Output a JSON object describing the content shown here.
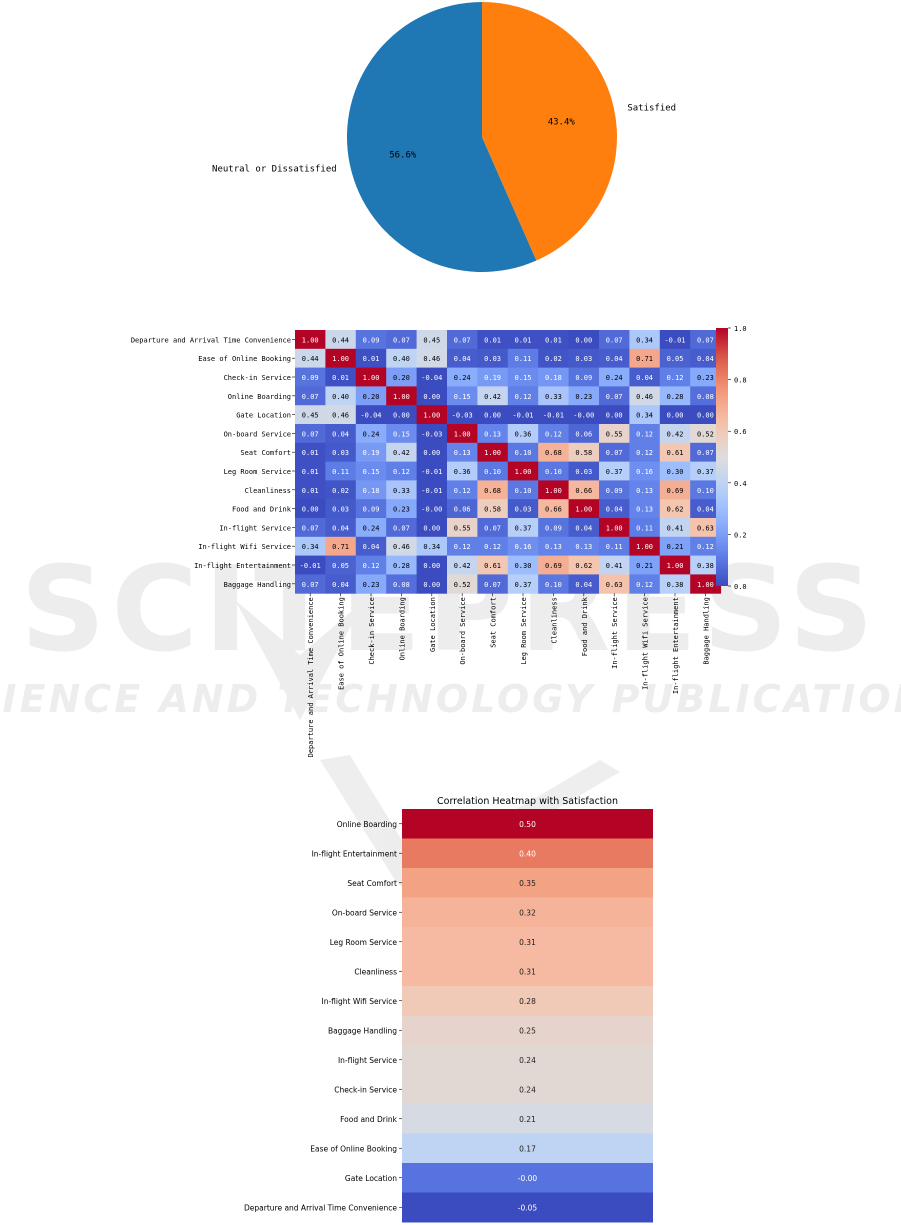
{
  "watermark": {
    "main": "SCITEPRESS",
    "sub": "SCIENCE AND TECHNOLOGY PUBLICATIONS"
  },
  "chart_data": [
    {
      "type": "pie",
      "title": "",
      "labels": [
        "Neutral or Dissatisfied",
        "Satisfied"
      ],
      "values": [
        56.6,
        43.4
      ],
      "value_labels": [
        "56.6%",
        "43.4%"
      ],
      "colors": [
        "#1f77b4",
        "#ff7f0e"
      ]
    },
    {
      "type": "heatmap",
      "title": "",
      "labels": [
        "Departure and Arrival Time Convenience",
        "Ease of Online Booking",
        "Check-in Service",
        "Online Boarding",
        "Gate Location",
        "On-board Service",
        "Seat Comfort",
        "Leg Room Service",
        "Cleanliness",
        "Food and Drink",
        "In-flight Service",
        "In-flight Wifi Service",
        "In-flight Entertainment",
        "Baggage Handling"
      ],
      "cell_text": [
        [
          "1.00",
          "0.44",
          "0.09",
          "0.07",
          "0.45",
          "0.07",
          "0.01",
          "0.01",
          "0.01",
          "0.00",
          "0.07",
          "0.34",
          "-0.01",
          "0.07"
        ],
        [
          "0.44",
          "1.00",
          "0.01",
          "0.40",
          "0.46",
          "0.04",
          "0.03",
          "0.11",
          "0.02",
          "0.03",
          "0.04",
          "0.71",
          "0.05",
          "0.04"
        ],
        [
          "0.09",
          "0.01",
          "1.00",
          "0.20",
          "-0.04",
          "0.24",
          "0.19",
          "0.15",
          "0.18",
          "0.09",
          "0.24",
          "0.04",
          "0.12",
          "0.23"
        ],
        [
          "0.07",
          "0.40",
          "0.20",
          "1.00",
          "0.00",
          "0.15",
          "0.42",
          "0.12",
          "0.33",
          "0.23",
          "0.07",
          "0.46",
          "0.28",
          "0.08"
        ],
        [
          "0.45",
          "0.46",
          "-0.04",
          "0.00",
          "1.00",
          "-0.03",
          "0.00",
          "-0.01",
          "-0.01",
          "-0.00",
          "0.00",
          "0.34",
          "0.00",
          "0.00"
        ],
        [
          "0.07",
          "0.04",
          "0.24",
          "0.15",
          "-0.03",
          "1.00",
          "0.13",
          "0.36",
          "0.12",
          "0.06",
          "0.55",
          "0.12",
          "0.42",
          "0.52"
        ],
        [
          "0.01",
          "0.03",
          "0.19",
          "0.42",
          "0.00",
          "0.13",
          "1.00",
          "0.10",
          "0.68",
          "0.58",
          "0.07",
          "0.12",
          "0.61",
          "0.07"
        ],
        [
          "0.01",
          "0.11",
          "0.15",
          "0.12",
          "-0.01",
          "0.36",
          "0.10",
          "1.00",
          "0.10",
          "0.03",
          "0.37",
          "0.16",
          "0.30",
          "0.37"
        ],
        [
          "0.01",
          "0.02",
          "0.18",
          "0.33",
          "-0.01",
          "0.12",
          "0.68",
          "0.10",
          "1.00",
          "0.66",
          "0.09",
          "0.13",
          "0.69",
          "0.10"
        ],
        [
          "0.00",
          "0.03",
          "0.09",
          "0.23",
          "-0.00",
          "0.06",
          "0.58",
          "0.03",
          "0.66",
          "1.00",
          "0.04",
          "0.13",
          "0.62",
          "0.04"
        ],
        [
          "0.07",
          "0.04",
          "0.24",
          "0.07",
          "0.00",
          "0.55",
          "0.07",
          "0.37",
          "0.09",
          "0.04",
          "1.00",
          "0.11",
          "0.41",
          "0.63"
        ],
        [
          "0.34",
          "0.71",
          "0.04",
          "0.46",
          "0.34",
          "0.12",
          "0.12",
          "0.16",
          "0.13",
          "0.13",
          "0.11",
          "1.00",
          "0.21",
          "0.12"
        ],
        [
          "-0.01",
          "0.05",
          "0.12",
          "0.28",
          "0.00",
          "0.42",
          "0.61",
          "0.30",
          "0.69",
          "0.62",
          "0.41",
          "0.21",
          "1.00",
          "0.38"
        ],
        [
          "0.07",
          "0.04",
          "0.23",
          "0.08",
          "0.00",
          "0.52",
          "0.07",
          "0.37",
          "0.10",
          "0.04",
          "0.63",
          "0.12",
          "0.38",
          "1.00"
        ]
      ],
      "colormap": "coolwarm",
      "vmin": 0.0,
      "vmax": 1.0,
      "colorbar_ticks": [
        "0.0",
        "0.2",
        "0.4",
        "0.6",
        "0.8",
        "1.0"
      ]
    },
    {
      "type": "heatmap",
      "title": "Correlation Heatmap with Satisfaction",
      "labels": [
        "Online Boarding",
        "In-flight Entertainment",
        "Seat Comfort",
        "On-board Service",
        "Leg Room Service",
        "Cleanliness",
        "In-flight Wifi Service",
        "Baggage Handling",
        "In-flight Service",
        "Check-in Service",
        "Food and Drink",
        "Ease of Online Booking",
        "Gate Location",
        "Departure and Arrival Time Convenience"
      ],
      "cell_text": [
        "0.50",
        "0.40",
        "0.35",
        "0.32",
        "0.31",
        "0.31",
        "0.28",
        "0.25",
        "0.24",
        "0.24",
        "0.21",
        "0.17",
        "-0.00",
        "-0.05"
      ],
      "colormap": "coolwarm",
      "vmin": -0.05,
      "vmax": 0.5
    }
  ]
}
